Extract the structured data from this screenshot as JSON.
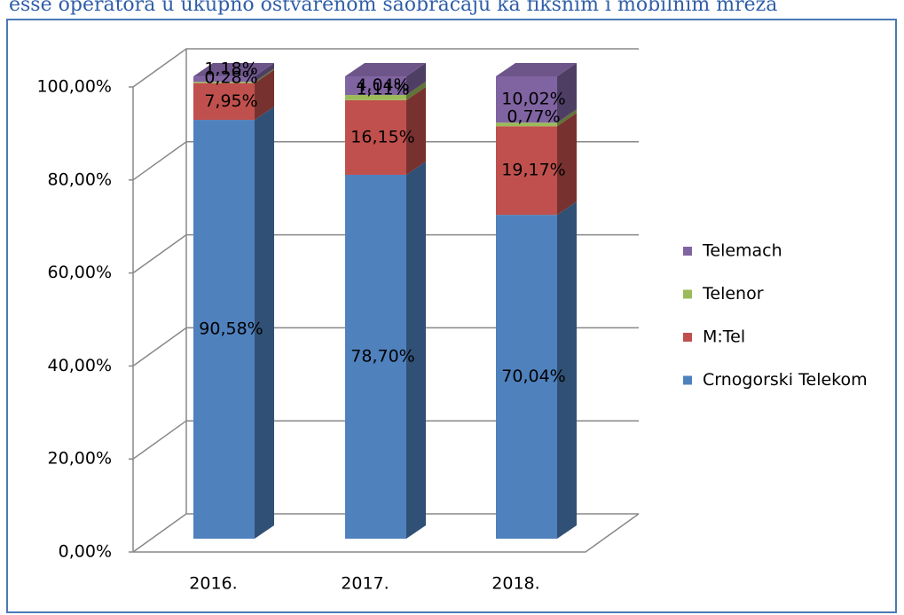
{
  "chart_data": {
    "type": "bar3d_stacked",
    "title": "esse operatora u ukupno ostvarenom saobraćaju ka fiksnim i mobilnim mreža",
    "categories": [
      "2016.",
      "2017.",
      "2018."
    ],
    "series": [
      {
        "name": "Crnogorski Telekom",
        "color": "#4f81bd",
        "values": [
          90.58,
          78.7,
          70.04
        ],
        "value_labels": [
          "90,58%",
          "78,70%",
          "70,04%"
        ]
      },
      {
        "name": "M:Tel",
        "color": "#c0504d",
        "values": [
          7.95,
          16.15,
          19.17
        ],
        "value_labels": [
          "7,95%",
          "16,15%",
          "19,17%"
        ]
      },
      {
        "name": "Telenor",
        "color": "#9bbb59",
        "values": [
          0.28,
          1.11,
          0.77
        ],
        "value_labels": [
          "0,28%",
          "1,11%",
          "0,77%"
        ]
      },
      {
        "name": "Telemach",
        "color": "#8064a2",
        "values": [
          1.18,
          4.04,
          10.02
        ],
        "value_labels": [
          "1,18%",
          "4,04%",
          "10,02%"
        ]
      }
    ],
    "ylim": [
      0,
      100
    ],
    "yticks": [
      {
        "value": 0,
        "label": "0,00%"
      },
      {
        "value": 20,
        "label": "20,00%"
      },
      {
        "value": 40,
        "label": "40,00%"
      },
      {
        "value": 60,
        "label": "60,00%"
      },
      {
        "value": 80,
        "label": "80,00%"
      },
      {
        "value": 100,
        "label": "100,00%"
      }
    ],
    "grid": true,
    "legend": "right"
  }
}
